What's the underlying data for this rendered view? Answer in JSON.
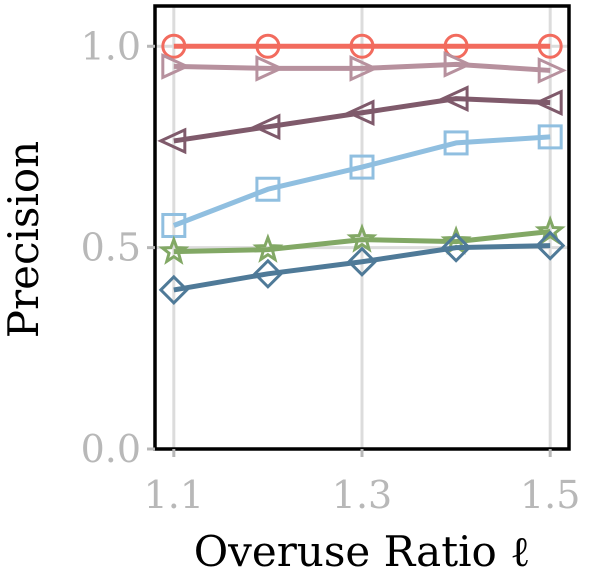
{
  "chart_data": {
    "type": "line",
    "title": "",
    "xlabel": "Overuse Ratio ℓ",
    "ylabel": "Precision",
    "x": [
      1.1,
      1.2,
      1.3,
      1.4,
      1.5
    ],
    "x_ticks": [
      1.1,
      1.3,
      1.5
    ],
    "x_tick_labels": [
      "1.1",
      "1.3",
      "1.5"
    ],
    "y_ticks": [
      0.0,
      0.5,
      1.0
    ],
    "y_tick_labels": [
      "0.0",
      "0.5",
      "1.0"
    ],
    "xlim": [
      1.08,
      1.52
    ],
    "ylim": [
      0.0,
      1.1
    ],
    "grid": true,
    "legend": "none",
    "series": [
      {
        "marker": "circle",
        "color": "#f26b5e",
        "values": [
          1.0,
          1.0,
          1.0,
          1.0,
          1.0
        ]
      },
      {
        "marker": "triangle-right",
        "color": "#b7919e",
        "values": [
          0.95,
          0.945,
          0.945,
          0.955,
          0.94
        ]
      },
      {
        "marker": "triangle-left",
        "color": "#7f5a6b",
        "values": [
          0.765,
          0.8,
          0.835,
          0.87,
          0.86
        ]
      },
      {
        "marker": "square",
        "color": "#90bfe0",
        "values": [
          0.555,
          0.645,
          0.7,
          0.76,
          0.775
        ]
      },
      {
        "marker": "star",
        "color": "#82a865",
        "values": [
          0.49,
          0.495,
          0.52,
          0.515,
          0.54
        ]
      },
      {
        "marker": "diamond",
        "color": "#4f7a98",
        "values": [
          0.395,
          0.435,
          0.465,
          0.5,
          0.505
        ]
      }
    ]
  }
}
